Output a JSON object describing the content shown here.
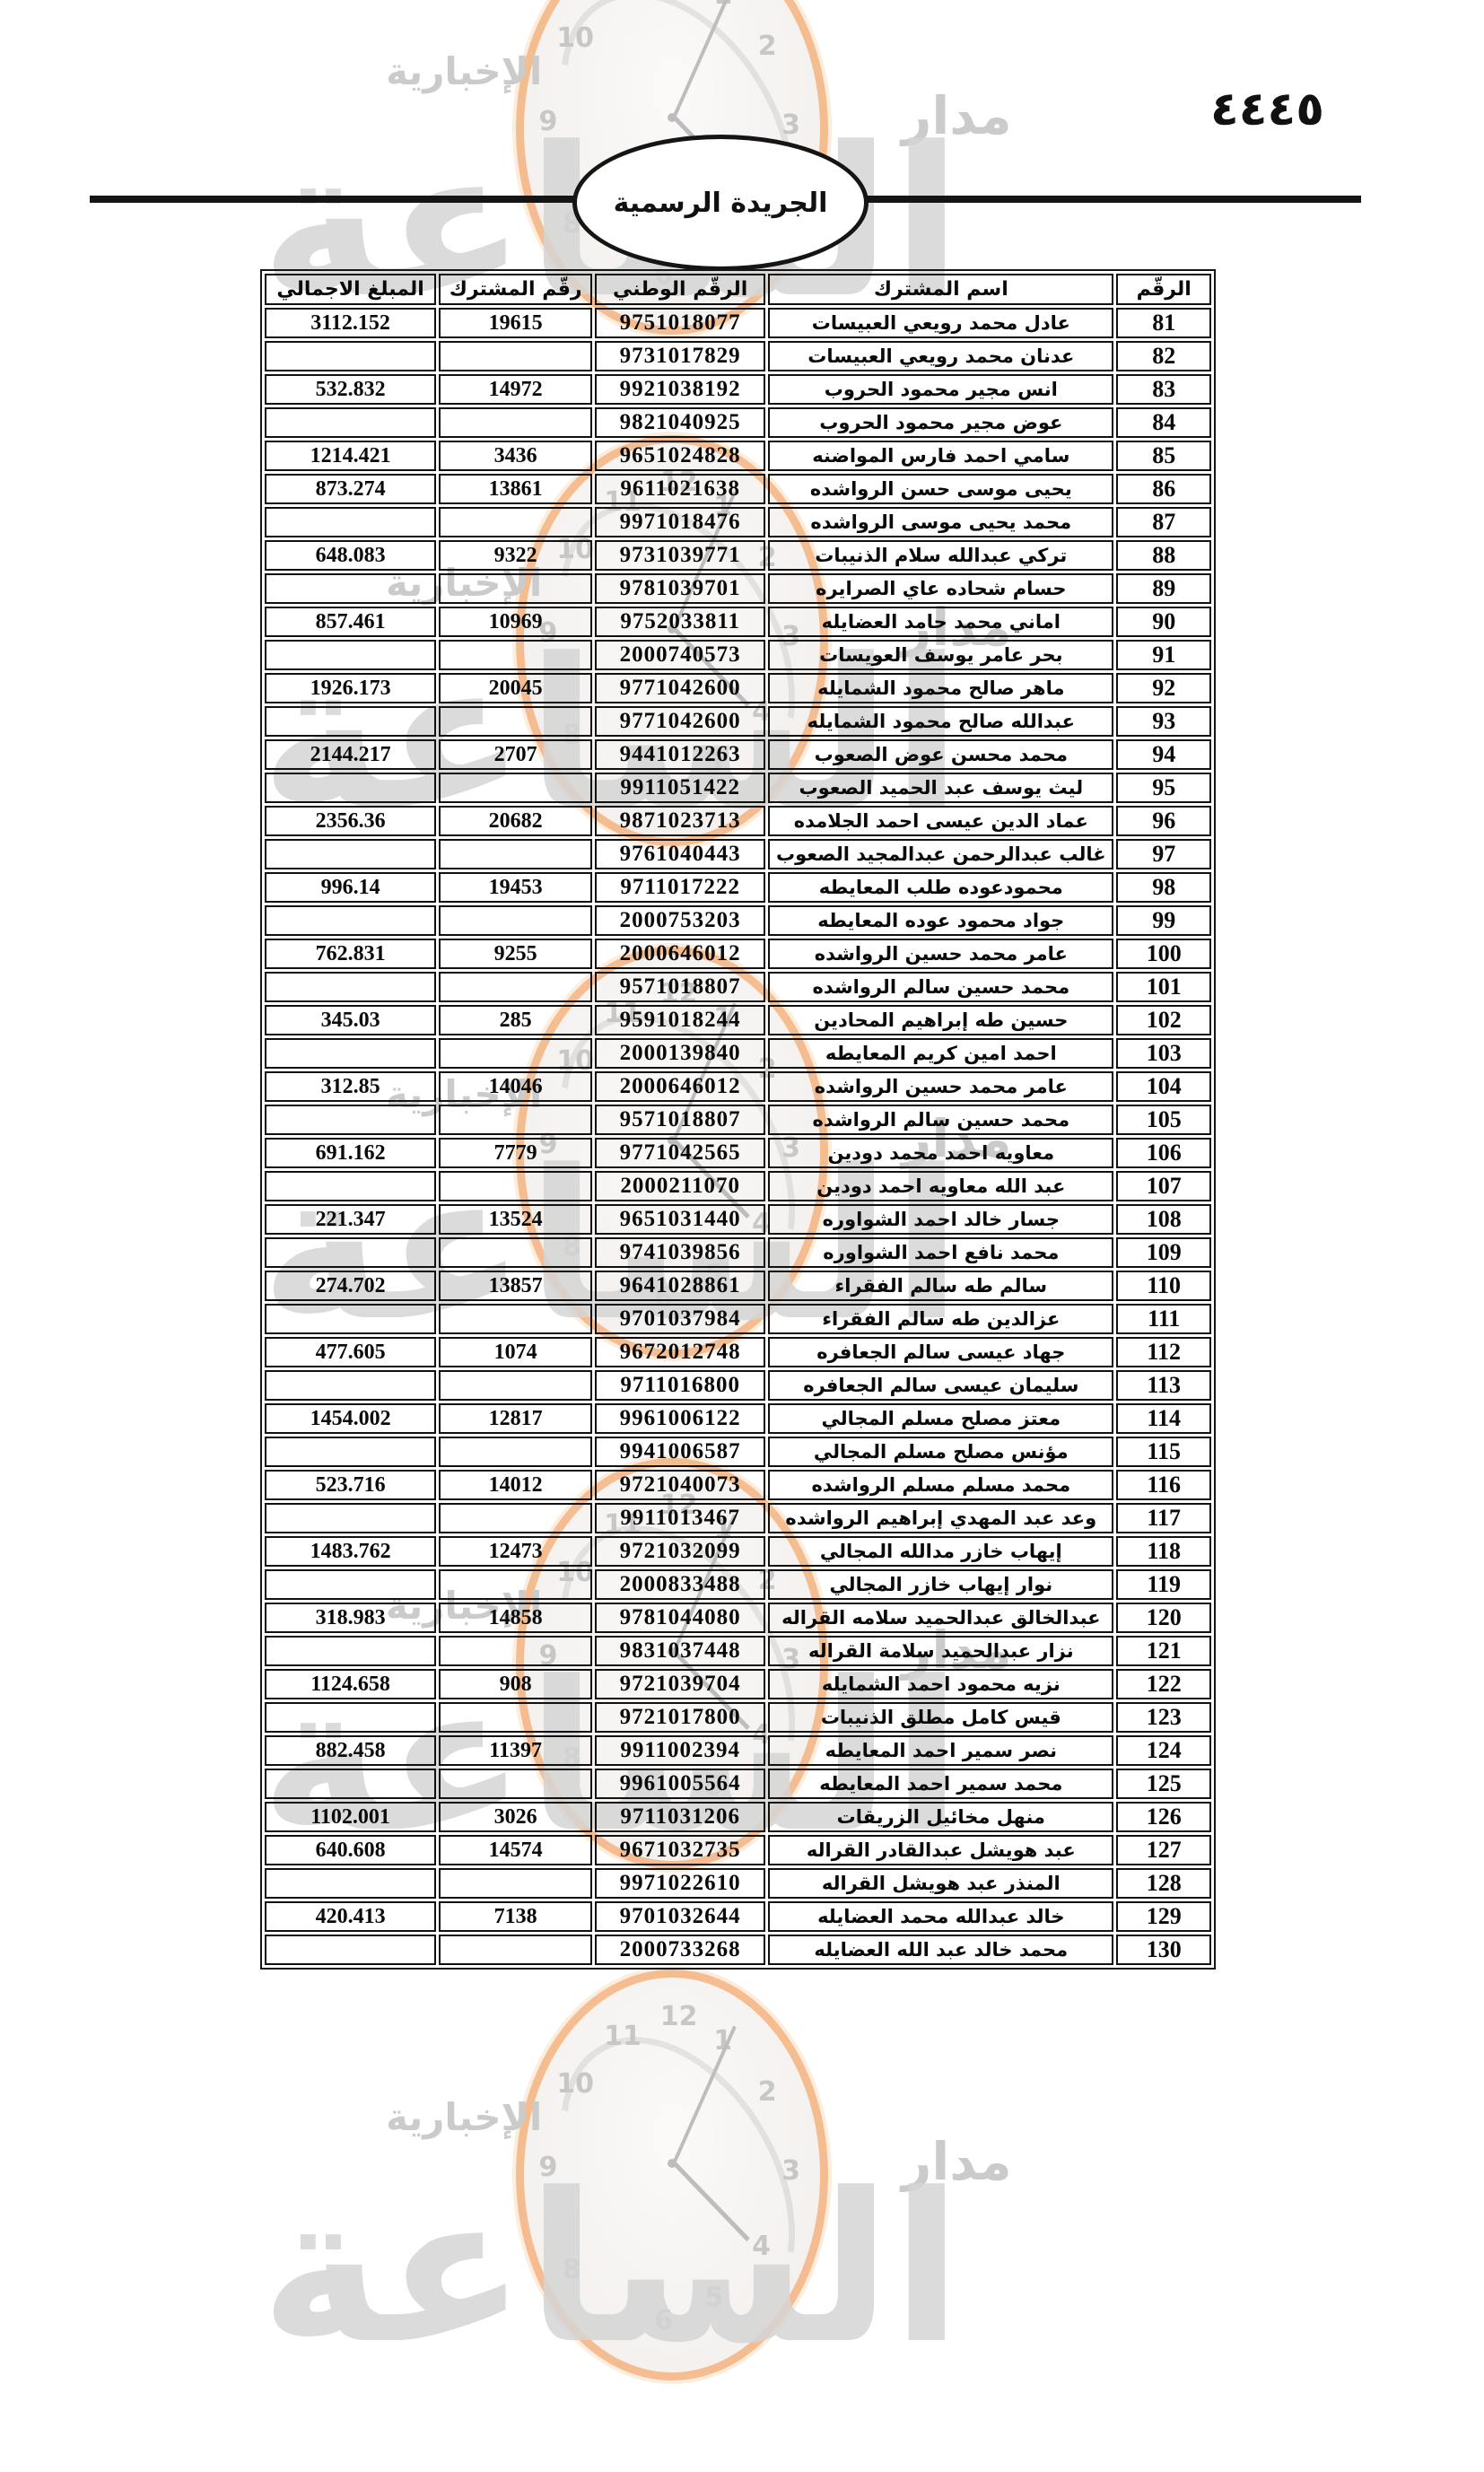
{
  "page": {
    "page_number": "٤٤٤٥",
    "banner_title": "الجريدة الرسمية"
  },
  "watermark": {
    "brand_word_right": "مدار",
    "brand_word_big": "الساعة",
    "brand_word_left": "الإخبارية",
    "accent_color": "#F4AB70",
    "gray_color": "#CBCBCB",
    "clock_numbers": [
      "12",
      "1",
      "2",
      "3",
      "4",
      "5",
      "6",
      "8",
      "9",
      "10",
      "11"
    ]
  },
  "table": {
    "columns": [
      {
        "key": "idx",
        "label": "الرقّم"
      },
      {
        "key": "name",
        "label": "اسم المشترك"
      },
      {
        "key": "national_id",
        "label": "الرقّم الوطني"
      },
      {
        "key": "subscriber_no",
        "label": "رقّم المشترك"
      },
      {
        "key": "total",
        "label": "المبلغ الاجمالي"
      }
    ],
    "rows": [
      {
        "idx": "81",
        "name": "عادل محمد رويعي العبيسات",
        "national_id": "9751018077",
        "subscriber_no": "19615",
        "total": "3112.152"
      },
      {
        "idx": "82",
        "name": "عدنان محمد رويعي العبيسات",
        "national_id": "9731017829",
        "subscriber_no": "",
        "total": ""
      },
      {
        "idx": "83",
        "name": "انس مجير محمود الحروب",
        "national_id": "9921038192",
        "subscriber_no": "14972",
        "total": "532.832"
      },
      {
        "idx": "84",
        "name": "عوض مجير محمود الحروب",
        "national_id": "9821040925",
        "subscriber_no": "",
        "total": ""
      },
      {
        "idx": "85",
        "name": "سامي احمد فارس المواضنه",
        "national_id": "9651024828",
        "subscriber_no": "3436",
        "total": "1214.421"
      },
      {
        "idx": "86",
        "name": "يحيى موسى حسن الرواشده",
        "national_id": "9611021638",
        "subscriber_no": "13861",
        "total": "873.274"
      },
      {
        "idx": "87",
        "name": "محمد يحيى موسى الرواشده",
        "national_id": "9971018476",
        "subscriber_no": "",
        "total": ""
      },
      {
        "idx": "88",
        "name": "تركي عبدالله سلام الذنيبات",
        "national_id": "9731039771",
        "subscriber_no": "9322",
        "total": "648.083"
      },
      {
        "idx": "89",
        "name": "حسام شحاده عاي الصرايره",
        "national_id": "9781039701",
        "subscriber_no": "",
        "total": ""
      },
      {
        "idx": "90",
        "name": "اماني محمد حامد العضايله",
        "national_id": "9752033811",
        "subscriber_no": "10969",
        "total": "857.461"
      },
      {
        "idx": "91",
        "name": "بحر عامر يوسف العويسات",
        "national_id": "2000740573",
        "subscriber_no": "",
        "total": ""
      },
      {
        "idx": "92",
        "name": "ماهر صالح محمود الشمايله",
        "national_id": "9771042600",
        "subscriber_no": "20045",
        "total": "1926.173"
      },
      {
        "idx": "93",
        "name": "عبدالله صالح محمود الشمايله",
        "national_id": "9771042600",
        "subscriber_no": "",
        "total": ""
      },
      {
        "idx": "94",
        "name": "محمد محسن عوض الصعوب",
        "national_id": "9441012263",
        "subscriber_no": "2707",
        "total": "2144.217"
      },
      {
        "idx": "95",
        "name": "ليث يوسف عبد الحميد الصعوب",
        "national_id": "9911051422",
        "subscriber_no": "",
        "total": ""
      },
      {
        "idx": "96",
        "name": "عماد الدين عيسى احمد الجلامده",
        "national_id": "9871023713",
        "subscriber_no": "20682",
        "total": "2356.36"
      },
      {
        "idx": "97",
        "name": "غالب عبدالرحمن عبدالمجيد الصعوب",
        "national_id": "9761040443",
        "subscriber_no": "",
        "total": ""
      },
      {
        "idx": "98",
        "name": "محمودعوده طلب المعايطه",
        "national_id": "9711017222",
        "subscriber_no": "19453",
        "total": "996.14"
      },
      {
        "idx": "99",
        "name": "جواد محمود عوده المعايطه",
        "national_id": "2000753203",
        "subscriber_no": "",
        "total": ""
      },
      {
        "idx": "100",
        "name": "عامر محمد حسين الرواشده",
        "national_id": "2000646012",
        "subscriber_no": "9255",
        "total": "762.831"
      },
      {
        "idx": "101",
        "name": "محمد حسين سالم الرواشده",
        "national_id": "9571018807",
        "subscriber_no": "",
        "total": ""
      },
      {
        "idx": "102",
        "name": "حسين طه إبراهيم المحادين",
        "national_id": "9591018244",
        "subscriber_no": "285",
        "total": "345.03"
      },
      {
        "idx": "103",
        "name": "احمد امين كريم المعايطه",
        "national_id": "2000139840",
        "subscriber_no": "",
        "total": ""
      },
      {
        "idx": "104",
        "name": "عامر محمد حسين الرواشده",
        "national_id": "2000646012",
        "subscriber_no": "14046",
        "total": "312.85"
      },
      {
        "idx": "105",
        "name": "محمد حسين سالم الرواشده",
        "national_id": "9571018807",
        "subscriber_no": "",
        "total": ""
      },
      {
        "idx": "106",
        "name": "معاويه احمد محمد دودين",
        "national_id": "9771042565",
        "subscriber_no": "7779",
        "total": "691.162"
      },
      {
        "idx": "107",
        "name": "عبد الله معاويه احمد دودين",
        "national_id": "2000211070",
        "subscriber_no": "",
        "total": ""
      },
      {
        "idx": "108",
        "name": "جسار خالد احمد الشواوره",
        "national_id": "9651031440",
        "subscriber_no": "13524",
        "total": "221.347"
      },
      {
        "idx": "109",
        "name": "محمد نافع احمد الشواوره",
        "national_id": "9741039856",
        "subscriber_no": "",
        "total": ""
      },
      {
        "idx": "110",
        "name": "سالم طه سالم الفقراء",
        "national_id": "9641028861",
        "subscriber_no": "13857",
        "total": "274.702"
      },
      {
        "idx": "111",
        "name": "عزالدين طه سالم الفقراء",
        "national_id": "9701037984",
        "subscriber_no": "",
        "total": ""
      },
      {
        "idx": "112",
        "name": "جهاد عيسى سالم الجعافره",
        "national_id": "9672012748",
        "subscriber_no": "1074",
        "total": "477.605"
      },
      {
        "idx": "113",
        "name": "سليمان عيسى سالم الجعافره",
        "national_id": "9711016800",
        "subscriber_no": "",
        "total": ""
      },
      {
        "idx": "114",
        "name": "معتز مصلح مسلم المجالي",
        "national_id": "9961006122",
        "subscriber_no": "12817",
        "total": "1454.002"
      },
      {
        "idx": "115",
        "name": "مؤنس مصلح مسلم المجالي",
        "national_id": "9941006587",
        "subscriber_no": "",
        "total": ""
      },
      {
        "idx": "116",
        "name": "محمد مسلم مسلم الرواشده",
        "national_id": "9721040073",
        "subscriber_no": "14012",
        "total": "523.716"
      },
      {
        "idx": "117",
        "name": "وعد عبد المهدي إبراهيم الرواشده",
        "national_id": "9911013467",
        "subscriber_no": "",
        "total": ""
      },
      {
        "idx": "118",
        "name": "إيهاب خازر مدالله المجالي",
        "national_id": "9721032099",
        "subscriber_no": "12473",
        "total": "1483.762"
      },
      {
        "idx": "119",
        "name": "نوار إيهاب خازر المجالي",
        "national_id": "2000833488",
        "subscriber_no": "",
        "total": ""
      },
      {
        "idx": "120",
        "name": "عبدالخالق عبدالحميد سلامه القراله",
        "national_id": "9781044080",
        "subscriber_no": "14858",
        "total": "318.983"
      },
      {
        "idx": "121",
        "name": "نزار عبدالحميد سلامة القراله",
        "national_id": "9831037448",
        "subscriber_no": "",
        "total": ""
      },
      {
        "idx": "122",
        "name": "نزيه محمود احمد الشمايله",
        "national_id": "9721039704",
        "subscriber_no": "908",
        "total": "1124.658"
      },
      {
        "idx": "123",
        "name": "قيس كامل مطلق الذنيبات",
        "national_id": "9721017800",
        "subscriber_no": "",
        "total": ""
      },
      {
        "idx": "124",
        "name": "نصر سمير احمد المعايطه",
        "national_id": "9911002394",
        "subscriber_no": "11397",
        "total": "882.458"
      },
      {
        "idx": "125",
        "name": "محمد سمير احمد المعايطه",
        "national_id": "9961005564",
        "subscriber_no": "",
        "total": ""
      },
      {
        "idx": "126",
        "name": "منهل مخائيل الزريقات",
        "national_id": "9711031206",
        "subscriber_no": "3026",
        "total": "1102.001"
      },
      {
        "idx": "127",
        "name": "عبد هويشل عبدالقادر القراله",
        "national_id": "9671032735",
        "subscriber_no": "14574",
        "total": "640.608"
      },
      {
        "idx": "128",
        "name": "المنذر عبد هويشل القراله",
        "national_id": "9971022610",
        "subscriber_no": "",
        "total": ""
      },
      {
        "idx": "129",
        "name": "خالد عبدالله محمد العضايله",
        "national_id": "9701032644",
        "subscriber_no": "7138",
        "total": "420.413"
      },
      {
        "idx": "130",
        "name": "محمد خالد عبد الله العضايله",
        "national_id": "2000733268",
        "subscriber_no": "",
        "total": ""
      }
    ]
  }
}
